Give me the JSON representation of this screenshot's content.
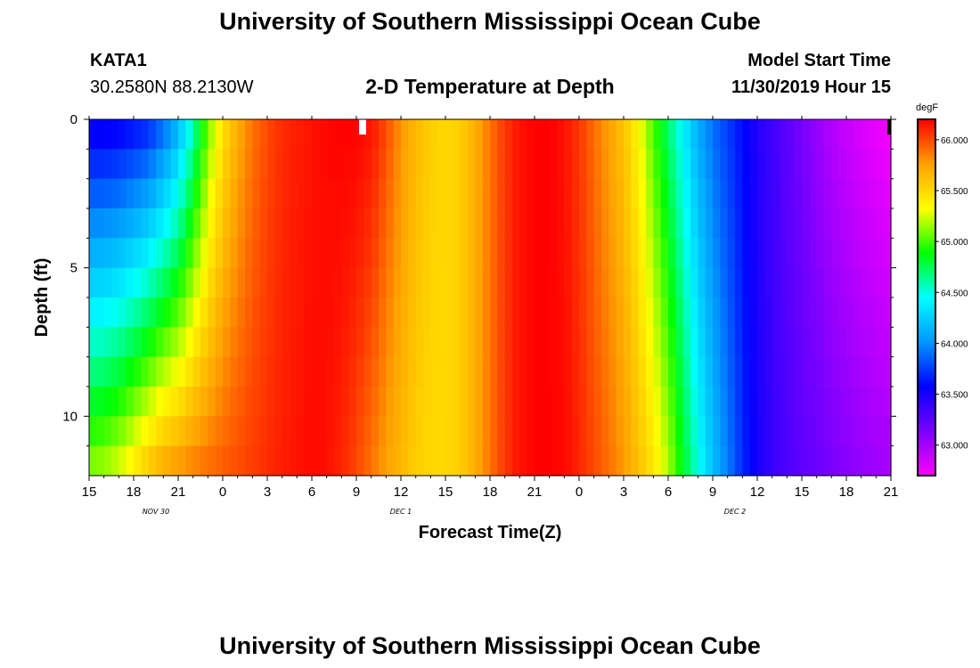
{
  "header": {
    "title": "University of Southern Mississippi Ocean Cube",
    "station_id": "KATA1",
    "coordinates": "30.2580N 88.2130W",
    "subtitle": "2-D Temperature at Depth",
    "model_label": "Model Start Time",
    "model_time": "11/30/2019 Hour 15"
  },
  "footer": {
    "title": "University of Southern Mississippi Ocean Cube"
  },
  "chart_data": {
    "type": "heatmap",
    "title": "2-D Temperature at Depth",
    "xlabel": "Forecast Time(Z)",
    "ylabel": "Depth (ft)",
    "x_unit": "hours since model start (11/30/2019 15Z)",
    "xlim": [
      0,
      54
    ],
    "ylim": [
      12,
      0
    ],
    "x_ticks": [
      {
        "hour": 0,
        "label": "15"
      },
      {
        "hour": 3,
        "label": "18"
      },
      {
        "hour": 6,
        "label": "21"
      },
      {
        "hour": 9,
        "label": "0"
      },
      {
        "hour": 12,
        "label": "3"
      },
      {
        "hour": 15,
        "label": "6"
      },
      {
        "hour": 18,
        "label": "9"
      },
      {
        "hour": 21,
        "label": "12"
      },
      {
        "hour": 24,
        "label": "15"
      },
      {
        "hour": 27,
        "label": "18"
      },
      {
        "hour": 30,
        "label": "21"
      },
      {
        "hour": 33,
        "label": "0"
      },
      {
        "hour": 36,
        "label": "3"
      },
      {
        "hour": 39,
        "label": "6"
      },
      {
        "hour": 42,
        "label": "9"
      },
      {
        "hour": 45,
        "label": "12"
      },
      {
        "hour": 48,
        "label": "15"
      },
      {
        "hour": 51,
        "label": "18"
      },
      {
        "hour": 54,
        "label": "21"
      }
    ],
    "date_labels": [
      {
        "hour": 4.5,
        "label": "NOV  30"
      },
      {
        "hour": 21,
        "label": "DEC  1"
      },
      {
        "hour": 43.5,
        "label": "DEC  2"
      }
    ],
    "y_ticks": [
      {
        "depth": 0,
        "label": "0"
      },
      {
        "depth": 5,
        "label": "5"
      },
      {
        "depth": 10,
        "label": "10"
      }
    ],
    "colorbar": {
      "unit": "degF",
      "range": [
        62.7,
        66.2
      ],
      "ticks": [
        {
          "value": 66.0,
          "label": "66.000"
        },
        {
          "value": 65.5,
          "label": "65.500"
        },
        {
          "value": 65.0,
          "label": "65.000"
        },
        {
          "value": 64.5,
          "label": "64.500"
        },
        {
          "value": 64.0,
          "label": "64.000"
        },
        {
          "value": 63.5,
          "label": "63.500"
        },
        {
          "value": 63.0,
          "label": "63.000"
        }
      ],
      "colors": [
        "#ff00ff",
        "#7b00ff",
        "#0000ff",
        "#0096ff",
        "#00ffff",
        "#00ff00",
        "#ffff00",
        "#ffa000",
        "#ff0000"
      ]
    },
    "time_hours": [
      0,
      1,
      2,
      3,
      4,
      5,
      6,
      7,
      8,
      9,
      10,
      11,
      12,
      13,
      14,
      15,
      16,
      17,
      18,
      19,
      20,
      21,
      22,
      23,
      24,
      25,
      26,
      27,
      28,
      29,
      30,
      31,
      32,
      33,
      34,
      35,
      36,
      37,
      38,
      39,
      40,
      41,
      42,
      43,
      44,
      45,
      46,
      47,
      48,
      49,
      50,
      51,
      52,
      53,
      54
    ],
    "surface_temps": [
      63.5,
      63.5,
      63.52,
      63.58,
      63.65,
      63.85,
      64.1,
      64.55,
      65.05,
      65.45,
      65.7,
      65.88,
      66.0,
      66.08,
      66.12,
      66.15,
      66.18,
      66.2,
      66.2,
      66.15,
      66.0,
      65.8,
      65.65,
      65.55,
      65.5,
      65.55,
      65.7,
      65.88,
      66.05,
      66.15,
      66.2,
      66.2,
      66.15,
      66.05,
      65.9,
      65.75,
      65.6,
      65.35,
      65.0,
      64.7,
      64.4,
      64.1,
      63.9,
      63.75,
      63.6,
      63.45,
      63.35,
      63.25,
      63.15,
      63.05,
      62.95,
      62.88,
      62.82,
      62.77,
      62.73
    ],
    "bottom_temps": [
      65.15,
      65.2,
      65.3,
      65.45,
      65.62,
      65.75,
      65.82,
      65.88,
      65.92,
      65.96,
      66.0,
      66.04,
      66.08,
      66.12,
      66.15,
      66.18,
      66.16,
      66.1,
      66.0,
      65.88,
      65.75,
      65.65,
      65.55,
      65.5,
      65.5,
      65.55,
      65.7,
      65.88,
      66.05,
      66.15,
      66.2,
      66.2,
      66.18,
      66.1,
      66.0,
      65.9,
      65.78,
      65.62,
      65.45,
      65.2,
      64.85,
      64.5,
      64.2,
      63.95,
      63.7,
      63.5,
      63.38,
      63.3,
      63.24,
      63.2,
      63.15,
      63.1,
      63.06,
      63.03,
      63.0
    ]
  }
}
